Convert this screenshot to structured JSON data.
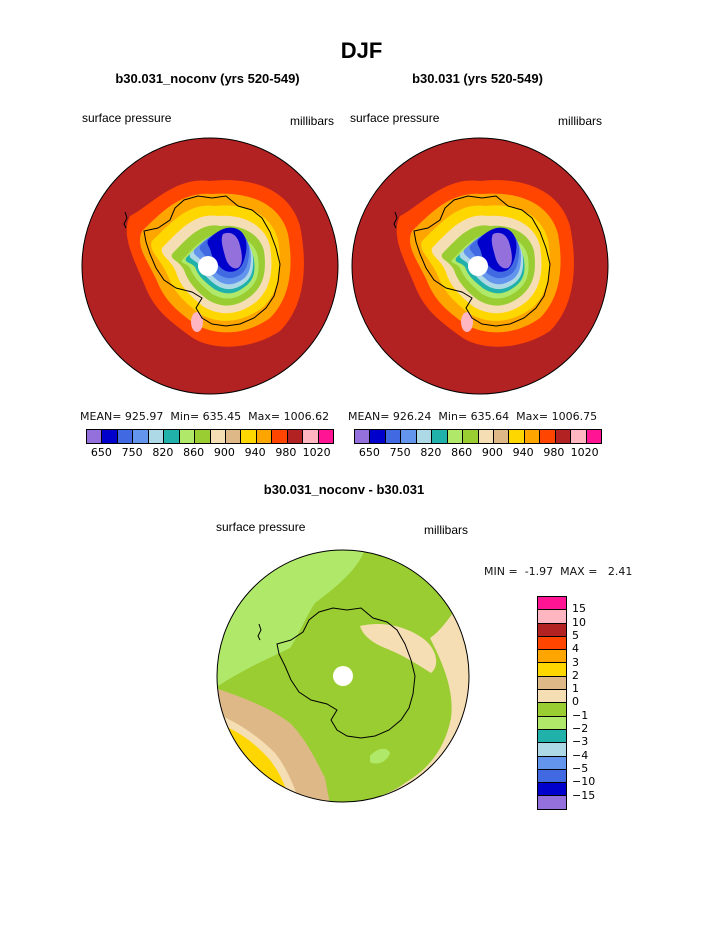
{
  "title": "DJF",
  "panels": [
    {
      "title": "b30.031_noconv (yrs 520-549)",
      "left_label": "surface pressure",
      "right_label": "millibars",
      "stats": {
        "mean_label": "MEAN=",
        "mean": "925.97",
        "min_label": "Min=",
        "min": "635.45",
        "max_label": "Max=",
        "max": "1006.62"
      }
    },
    {
      "title": "b30.031 (yrs 520-549)",
      "left_label": "surface pressure",
      "right_label": "millibars",
      "stats": {
        "mean_label": "MEAN=",
        "mean": "926.24",
        "min_label": "Min=",
        "min": "635.64",
        "max_label": "Max=",
        "max": "1006.75"
      }
    }
  ],
  "abs_colorbar": {
    "colors": [
      "#9370db",
      "#0000cd",
      "#4169e1",
      "#6495ed",
      "#add8e6",
      "#20b2aa",
      "#b0e86a",
      "#9acd32",
      "#f5deb3",
      "#deb887",
      "#ffd700",
      "#ffa500",
      "#ff4500",
      "#b22222",
      "#ffb6c1",
      "#ff1493"
    ],
    "labels": [
      "650",
      "750",
      "820",
      "860",
      "900",
      "940",
      "980",
      "1020"
    ]
  },
  "diff_panel": {
    "title": "b30.031_noconv - b30.031",
    "left_label": "surface pressure",
    "right_label": "millibars",
    "minmax": {
      "min_label": "MIN =",
      "min": "-1.97",
      "max_label": "MAX =",
      "max": "2.41"
    }
  },
  "diff_colorbar": {
    "colors": [
      "#ff1493",
      "#ffb6c1",
      "#b22222",
      "#ff4500",
      "#ffa500",
      "#ffd700",
      "#deb887",
      "#f5deb3",
      "#9acd32",
      "#b0e86a",
      "#20b2aa",
      "#add8e6",
      "#6495ed",
      "#4169e1",
      "#0000cd",
      "#9370db"
    ],
    "labels": [
      "15",
      "10",
      "5",
      "4",
      "3",
      "2",
      "1",
      "0",
      "−1",
      "−2",
      "−3",
      "−4",
      "−5",
      "−10",
      "−15"
    ]
  }
}
